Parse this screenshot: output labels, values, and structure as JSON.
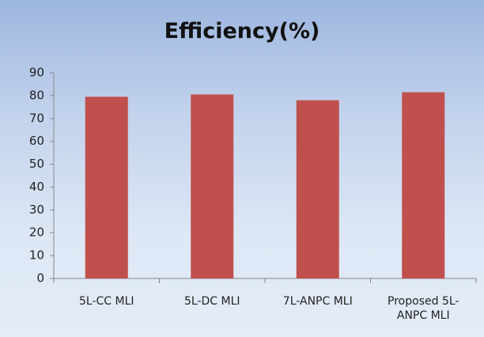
{
  "chart_data": {
    "type": "bar",
    "title": "Efficiency(%)",
    "categories": [
      "5L-CC MLI",
      "5L-DC MLI",
      "7L-ANPC MLI",
      "Proposed 5L-ANPC MLI"
    ],
    "values": [
      79.5,
      80.5,
      78,
      81.5
    ],
    "color": "#c0504d",
    "ylim": [
      0,
      90
    ],
    "yticks": [
      0,
      10,
      20,
      30,
      40,
      50,
      60,
      70,
      80,
      90
    ],
    "grid": false
  }
}
